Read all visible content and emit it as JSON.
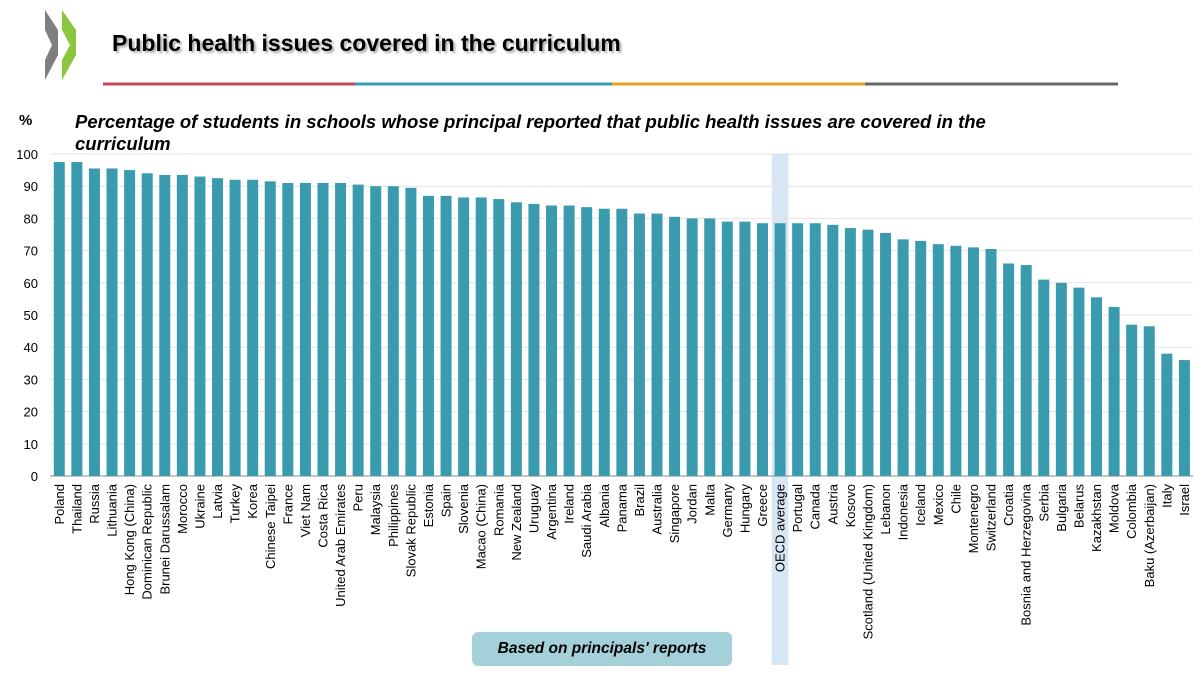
{
  "header": {
    "title": "Public health issues covered in the curriculum"
  },
  "chart_data": {
    "type": "bar",
    "subtitle": "Percentage of students in schools whose principal reported that public health issues are covered in the curriculum",
    "y_unit": "%",
    "note": "Based on principals' reports",
    "categories": [
      "Poland",
      "Thailand",
      "Russia",
      "Lithuania",
      "Hong Kong (China)",
      "Dominican Republic",
      "Brunei Darussalam",
      "Morocco",
      "Ukraine",
      "Latvia",
      "Turkey",
      "Korea",
      "Chinese Taipei",
      "France",
      "Viet Nam",
      "Costa Rica",
      "United Arab Emirates",
      "Peru",
      "Malaysia",
      "Philippines",
      "Slovak Republic",
      "Estonia",
      "Spain",
      "Slovenia",
      "Macao (China)",
      "Romania",
      "New Zealand",
      "Uruguay",
      "Argentina",
      "Ireland",
      "Saudi Arabia",
      "Albania",
      "Panama",
      "Brazil",
      "Australia",
      "Singapore",
      "Jordan",
      "Malta",
      "Germany",
      "Hungary",
      "Greece",
      "OECD average",
      "Portugal",
      "Canada",
      "Austria",
      "Kosovo",
      "Scotland (United Kingdom)",
      "Lebanon",
      "Indonesia",
      "Iceland",
      "Mexico",
      "Chile",
      "Montenegro",
      "Switzerland",
      "Croatia",
      "Bosnia and Herzegovina",
      "Serbia",
      "Bulgaria",
      "Belarus",
      "Kazakhstan",
      "Moldova",
      "Colombia",
      "Baku (Azerbaijan)",
      "Italy",
      "Israel"
    ],
    "values": [
      97.5,
      97.5,
      95.5,
      95.5,
      95,
      94,
      93.5,
      93.5,
      93,
      92.5,
      92,
      92,
      91.5,
      91,
      91,
      91,
      91,
      90.5,
      90,
      90,
      89.5,
      87,
      87,
      86.5,
      86.5,
      86,
      85,
      84.5,
      84,
      84,
      83.5,
      83,
      83,
      81.5,
      81.5,
      80.5,
      80,
      80,
      79,
      79,
      78.5,
      78.5,
      78.5,
      78.5,
      78,
      77,
      76.5,
      75.5,
      73.5,
      73,
      72,
      71.5,
      71,
      70.5,
      66,
      65.5,
      61,
      60,
      58.5,
      55.5,
      52.5,
      47,
      46.5,
      38,
      36
    ],
    "color": "#3a9bae",
    "highlight": "OECD average",
    "highlight_color": "#d6e6f4",
    "ylim": [
      0,
      100
    ],
    "yticks": [
      0,
      10,
      20,
      30,
      40,
      50,
      60,
      70,
      80,
      90,
      100
    ],
    "grid": true
  }
}
